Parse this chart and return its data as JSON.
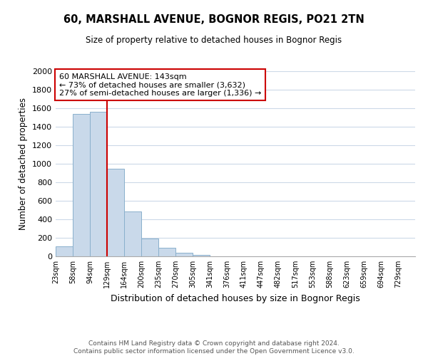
{
  "title": "60, MARSHALL AVENUE, BOGNOR REGIS, PO21 2TN",
  "subtitle": "Size of property relative to detached houses in Bognor Regis",
  "xlabel": "Distribution of detached houses by size in Bognor Regis",
  "ylabel": "Number of detached properties",
  "bar_values": [
    110,
    1540,
    1565,
    950,
    485,
    190,
    95,
    35,
    15,
    0,
    0,
    0,
    0,
    0,
    0,
    0,
    0,
    0,
    0
  ],
  "bin_labels": [
    "23sqm",
    "58sqm",
    "94sqm",
    "129sqm",
    "164sqm",
    "200sqm",
    "235sqm",
    "270sqm",
    "305sqm",
    "341sqm",
    "376sqm",
    "411sqm",
    "447sqm",
    "482sqm",
    "517sqm",
    "553sqm",
    "588sqm",
    "623sqm",
    "659sqm",
    "694sqm",
    "729sqm"
  ],
  "bar_color": "#c9d9ea",
  "bar_edge_color": "#8ab0cc",
  "vline_x": 3,
  "vline_color": "#cc0000",
  "ylim": [
    0,
    2000
  ],
  "yticks": [
    0,
    200,
    400,
    600,
    800,
    1000,
    1200,
    1400,
    1600,
    1800,
    2000
  ],
  "annotation_title": "60 MARSHALL AVENUE: 143sqm",
  "annotation_line1": "← 73% of detached houses are smaller (3,632)",
  "annotation_line2": "27% of semi-detached houses are larger (1,336) →",
  "annotation_box_color": "#ffffff",
  "annotation_box_edge": "#cc0000",
  "footer_line1": "Contains HM Land Registry data © Crown copyright and database right 2024.",
  "footer_line2": "Contains public sector information licensed under the Open Government Licence v3.0.",
  "background_color": "#ffffff",
  "grid_color": "#ccd9e8"
}
